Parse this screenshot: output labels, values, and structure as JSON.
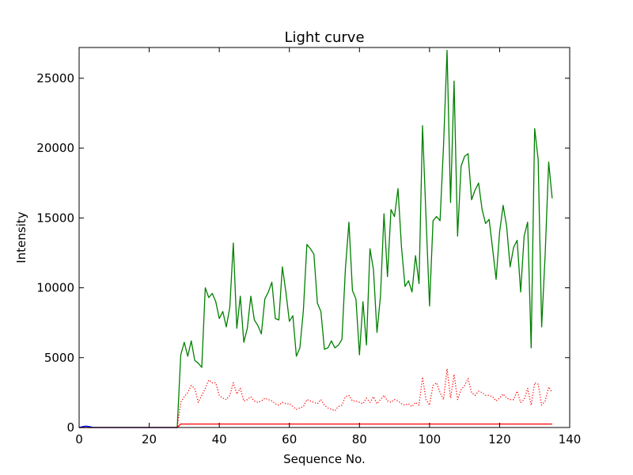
{
  "chart_data": {
    "type": "line",
    "title": "Light curve",
    "xlabel": "Sequence No.",
    "ylabel": "Intensity",
    "xlim": [
      0,
      140
    ],
    "ylim": [
      0,
      27200
    ],
    "xticks": [
      0,
      20,
      40,
      60,
      80,
      100,
      120,
      140
    ],
    "xtick_labels": [
      "0",
      "20",
      "40",
      "60",
      "80",
      "100",
      "120",
      "140"
    ],
    "yticks": [
      0,
      5000,
      10000,
      15000,
      20000,
      25000
    ],
    "ytick_labels": [
      "0",
      "5000",
      "10000",
      "15000",
      "20000",
      "25000"
    ],
    "grid": false,
    "series": [
      {
        "style": "solid",
        "color": "#008000",
        "x": [
          0,
          1,
          2,
          3,
          4,
          5,
          6,
          7,
          8,
          9,
          10,
          11,
          12,
          13,
          14,
          15,
          16,
          17,
          18,
          19,
          20,
          21,
          22,
          23,
          24,
          25,
          26,
          27,
          28,
          29,
          30,
          31,
          32,
          33,
          34,
          35,
          36,
          37,
          38,
          39,
          40,
          41,
          42,
          43,
          44,
          45,
          46,
          47,
          48,
          49,
          50,
          51,
          52,
          53,
          54,
          55,
          56,
          57,
          58,
          59,
          60,
          61,
          62,
          63,
          64,
          65,
          66,
          67,
          68,
          69,
          70,
          71,
          72,
          73,
          74,
          75,
          76,
          77,
          78,
          79,
          80,
          81,
          82,
          83,
          84,
          85,
          86,
          87,
          88,
          89,
          90,
          91,
          92,
          93,
          94,
          95,
          96,
          97,
          98,
          99,
          100,
          101,
          102,
          103,
          104,
          105,
          106,
          107,
          108,
          109,
          110,
          111,
          112,
          113,
          114,
          115,
          116,
          117,
          118,
          119,
          120,
          121,
          122,
          123,
          124,
          125,
          126,
          127,
          128,
          129,
          130,
          131,
          132,
          133,
          134,
          135
        ],
        "values": [
          0,
          0,
          0,
          0,
          0,
          0,
          0,
          0,
          0,
          0,
          0,
          0,
          0,
          0,
          0,
          0,
          0,
          0,
          0,
          0,
          0,
          0,
          0,
          0,
          0,
          0,
          0,
          0,
          0,
          5200,
          6100,
          5100,
          6200,
          4800,
          4600,
          4300,
          10000,
          9300,
          9600,
          9000,
          7800,
          8300,
          7200,
          8600,
          13200,
          7100,
          9400,
          6100,
          7100,
          9400,
          7700,
          7300,
          6700,
          9200,
          9700,
          10400,
          7800,
          7700,
          11500,
          9700,
          7600,
          8000,
          5100,
          5700,
          8400,
          13100,
          12800,
          12400,
          8900,
          8300,
          5600,
          5700,
          6200,
          5700,
          5900,
          6300,
          11400,
          14700,
          9800,
          9200,
          5200,
          9000,
          5900,
          12800,
          11300,
          6800,
          9400,
          15300,
          10800,
          15600,
          15100,
          17100,
          12900,
          10100,
          10500,
          9700,
          12300,
          10300,
          21600,
          15000,
          8700,
          14800,
          15100,
          14800,
          20200,
          27000,
          16100,
          24800,
          13700,
          18700,
          19400,
          19600,
          16300,
          17000,
          17500,
          15600,
          14600,
          14900,
          12800,
          10600,
          14000,
          15900,
          14400,
          11500,
          12900,
          13400,
          9700,
          13700,
          14700,
          5700,
          21400,
          19200,
          7200,
          12400,
          19000,
          16400
        ]
      },
      {
        "style": "dotted",
        "color": "#ff0000",
        "x": [
          0,
          1,
          2,
          3,
          4,
          5,
          6,
          7,
          8,
          9,
          10,
          11,
          12,
          13,
          14,
          15,
          16,
          17,
          18,
          19,
          20,
          21,
          22,
          23,
          24,
          25,
          26,
          27,
          28,
          29,
          30,
          31,
          32,
          33,
          34,
          35,
          36,
          37,
          38,
          39,
          40,
          41,
          42,
          43,
          44,
          45,
          46,
          47,
          48,
          49,
          50,
          51,
          52,
          53,
          54,
          55,
          56,
          57,
          58,
          59,
          60,
          61,
          62,
          63,
          64,
          65,
          66,
          67,
          68,
          69,
          70,
          71,
          72,
          73,
          74,
          75,
          76,
          77,
          78,
          79,
          80,
          81,
          82,
          83,
          84,
          85,
          86,
          87,
          88,
          89,
          90,
          91,
          92,
          93,
          94,
          95,
          96,
          97,
          98,
          99,
          100,
          101,
          102,
          103,
          104,
          105,
          106,
          107,
          108,
          109,
          110,
          111,
          112,
          113,
          114,
          115,
          116,
          117,
          118,
          119,
          120,
          121,
          122,
          123,
          124,
          125,
          126,
          127,
          128,
          129,
          130,
          131,
          132,
          133,
          134,
          135
        ],
        "values": [
          0,
          0,
          0,
          0,
          0,
          0,
          0,
          0,
          0,
          0,
          0,
          0,
          0,
          0,
          0,
          0,
          0,
          0,
          0,
          0,
          0,
          0,
          0,
          0,
          0,
          0,
          0,
          0,
          0,
          1800,
          2200,
          2500,
          3000,
          2800,
          1800,
          2300,
          2800,
          3400,
          3200,
          3200,
          2300,
          2100,
          2000,
          2300,
          3200,
          2400,
          2800,
          1900,
          2000,
          2200,
          1900,
          1800,
          1900,
          2100,
          2000,
          1900,
          1700,
          1600,
          1800,
          1700,
          1700,
          1500,
          1300,
          1400,
          1500,
          2000,
          1900,
          1800,
          1700,
          2000,
          1600,
          1400,
          1300,
          1200,
          1500,
          1600,
          2200,
          2300,
          1900,
          1900,
          1800,
          1700,
          2100,
          1800,
          2200,
          1700,
          2000,
          2300,
          1900,
          1800,
          2000,
          1900,
          1700,
          1600,
          1700,
          1500,
          1800,
          1600,
          3600,
          2000,
          1600,
          3000,
          3200,
          2500,
          2000,
          4200,
          2100,
          3800,
          2000,
          2700,
          3000,
          3500,
          2500,
          2300,
          2600,
          2500,
          2300,
          2300,
          2200,
          1900,
          2100,
          2400,
          2100,
          2000,
          2000,
          2600,
          1800,
          2000,
          2800,
          1600,
          3200,
          3100,
          1600,
          1900,
          2900,
          2500
        ]
      },
      {
        "style": "solid",
        "color": "#ff0000",
        "x": [
          0,
          1,
          2,
          3,
          4,
          5,
          6,
          7,
          8,
          9,
          10,
          11,
          12,
          13,
          14,
          15,
          16,
          17,
          18,
          19,
          20,
          21,
          22,
          23,
          24,
          25,
          26,
          27,
          28,
          29,
          30,
          31,
          32,
          33,
          34,
          35,
          36,
          37,
          38,
          39,
          40,
          41,
          42,
          43,
          44,
          45,
          46,
          47,
          48,
          49,
          50,
          51,
          52,
          53,
          54,
          55,
          56,
          57,
          58,
          59,
          60,
          61,
          62,
          63,
          64,
          65,
          66,
          67,
          68,
          69,
          70,
          71,
          72,
          73,
          74,
          75,
          76,
          77,
          78,
          79,
          80,
          81,
          82,
          83,
          84,
          85,
          86,
          87,
          88,
          89,
          90,
          91,
          92,
          93,
          94,
          95,
          96,
          97,
          98,
          99,
          100,
          101,
          102,
          103,
          104,
          105,
          106,
          107,
          108,
          109,
          110,
          111,
          112,
          113,
          114,
          115,
          116,
          117,
          118,
          119,
          120,
          121,
          122,
          123,
          124,
          125,
          126,
          127,
          128,
          129,
          130,
          131,
          132,
          133,
          134,
          135
        ],
        "values": [
          0,
          0,
          0,
          0,
          0,
          0,
          0,
          0,
          0,
          0,
          0,
          0,
          0,
          0,
          0,
          0,
          0,
          0,
          0,
          0,
          0,
          0,
          0,
          0,
          0,
          0,
          0,
          0,
          0,
          250,
          250,
          250,
          250,
          250,
          250,
          250,
          250,
          250,
          250,
          250,
          250,
          250,
          250,
          250,
          250,
          250,
          250,
          250,
          250,
          250,
          250,
          250,
          250,
          250,
          250,
          250,
          250,
          250,
          250,
          250,
          250,
          250,
          250,
          250,
          250,
          250,
          250,
          250,
          250,
          250,
          250,
          250,
          250,
          250,
          250,
          250,
          250,
          250,
          250,
          250,
          250,
          250,
          250,
          250,
          250,
          250,
          250,
          250,
          250,
          250,
          250,
          250,
          250,
          250,
          250,
          250,
          250,
          250,
          250,
          250,
          250,
          250,
          250,
          250,
          250,
          250,
          250,
          250,
          250,
          250,
          250,
          250,
          250,
          250,
          250,
          250,
          250,
          250,
          250,
          250,
          250,
          250,
          250,
          250,
          250,
          250,
          250,
          250,
          250,
          250,
          250,
          250,
          250,
          250,
          250,
          250
        ]
      },
      {
        "style": "solid",
        "color": "#0000ff",
        "x": [
          0,
          1,
          2,
          3,
          4,
          5,
          6,
          7,
          8,
          9,
          10,
          11,
          12,
          13,
          14,
          15,
          16,
          17,
          18,
          19,
          20,
          21,
          22,
          23,
          24,
          25,
          26,
          27,
          28
        ],
        "values": [
          0,
          60,
          100,
          60,
          0,
          0,
          0,
          0,
          0,
          0,
          0,
          0,
          0,
          0,
          0,
          0,
          0,
          0,
          0,
          0,
          0,
          0,
          0,
          0,
          0,
          0,
          0,
          0,
          0
        ]
      }
    ]
  }
}
